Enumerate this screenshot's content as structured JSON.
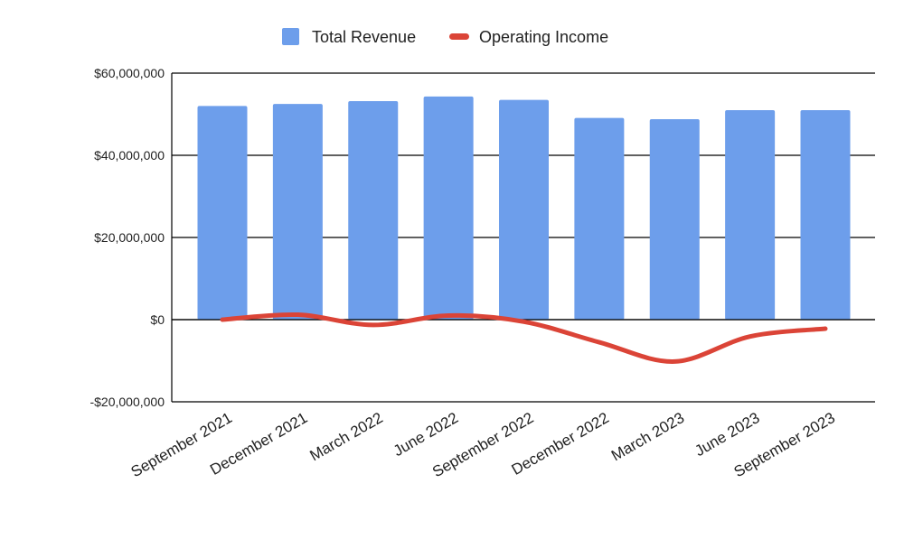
{
  "chart_data": {
    "type": "bar",
    "categories": [
      "September 2021",
      "December 2021",
      "March 2022",
      "June 2022",
      "September 2022",
      "December 2022",
      "March 2023",
      "June 2023",
      "September 2023"
    ],
    "series": [
      {
        "name": "Total Revenue",
        "type": "bar",
        "color": "#6d9eeb",
        "values": [
          52000000,
          52500000,
          53200000,
          54300000,
          53500000,
          49100000,
          48800000,
          51000000,
          51000000
        ]
      },
      {
        "name": "Operating Income",
        "type": "line",
        "color": "#db4437",
        "smooth": true,
        "values": [
          0,
          1200000,
          -1300000,
          1000000,
          -500000,
          -5500000,
          -10200000,
          -4100000,
          -2200000
        ]
      }
    ],
    "ylim": [
      -20000000,
      60000000
    ],
    "yticks": [
      60000000,
      40000000,
      20000000,
      0,
      -20000000
    ],
    "ytick_labels": [
      "$60,000,000",
      "$40,000,000",
      "$20,000,000",
      "$0",
      "-$20,000,000"
    ],
    "grid": true,
    "legend_position": "top-center"
  }
}
